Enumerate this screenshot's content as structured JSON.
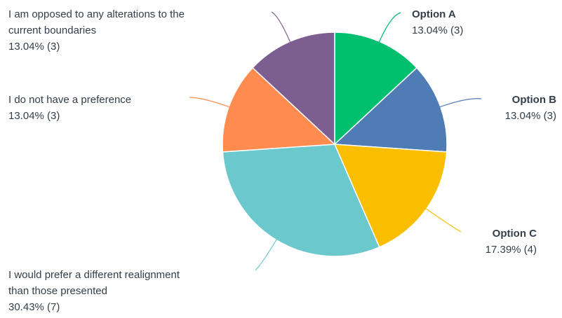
{
  "chart_data": {
    "type": "pie",
    "slices": [
      {
        "name": "Option A",
        "percent": 13.04,
        "count": 3,
        "value_label": "13.04% (3)",
        "color": "#00bf6f"
      },
      {
        "name": "Option B",
        "percent": 13.04,
        "count": 3,
        "value_label": "13.04% (3)",
        "color": "#507cb6"
      },
      {
        "name": "Option C",
        "percent": 17.39,
        "count": 4,
        "value_label": "17.39% (4)",
        "color": "#f9be00"
      },
      {
        "name": "I would prefer a different realignment than those presented",
        "percent": 30.43,
        "count": 7,
        "value_label": "30.43% (7)",
        "color": "#6bc8cd"
      },
      {
        "name": "I do not have a preference",
        "percent": 13.04,
        "count": 3,
        "value_label": "13.04% (3)",
        "color": "#ff8b4f"
      },
      {
        "name": "I am opposed to any alterations to the current boundaries",
        "percent": 13.04,
        "count": 3,
        "value_label": "13.04% (3)",
        "color": "#7d5e90"
      }
    ]
  }
}
